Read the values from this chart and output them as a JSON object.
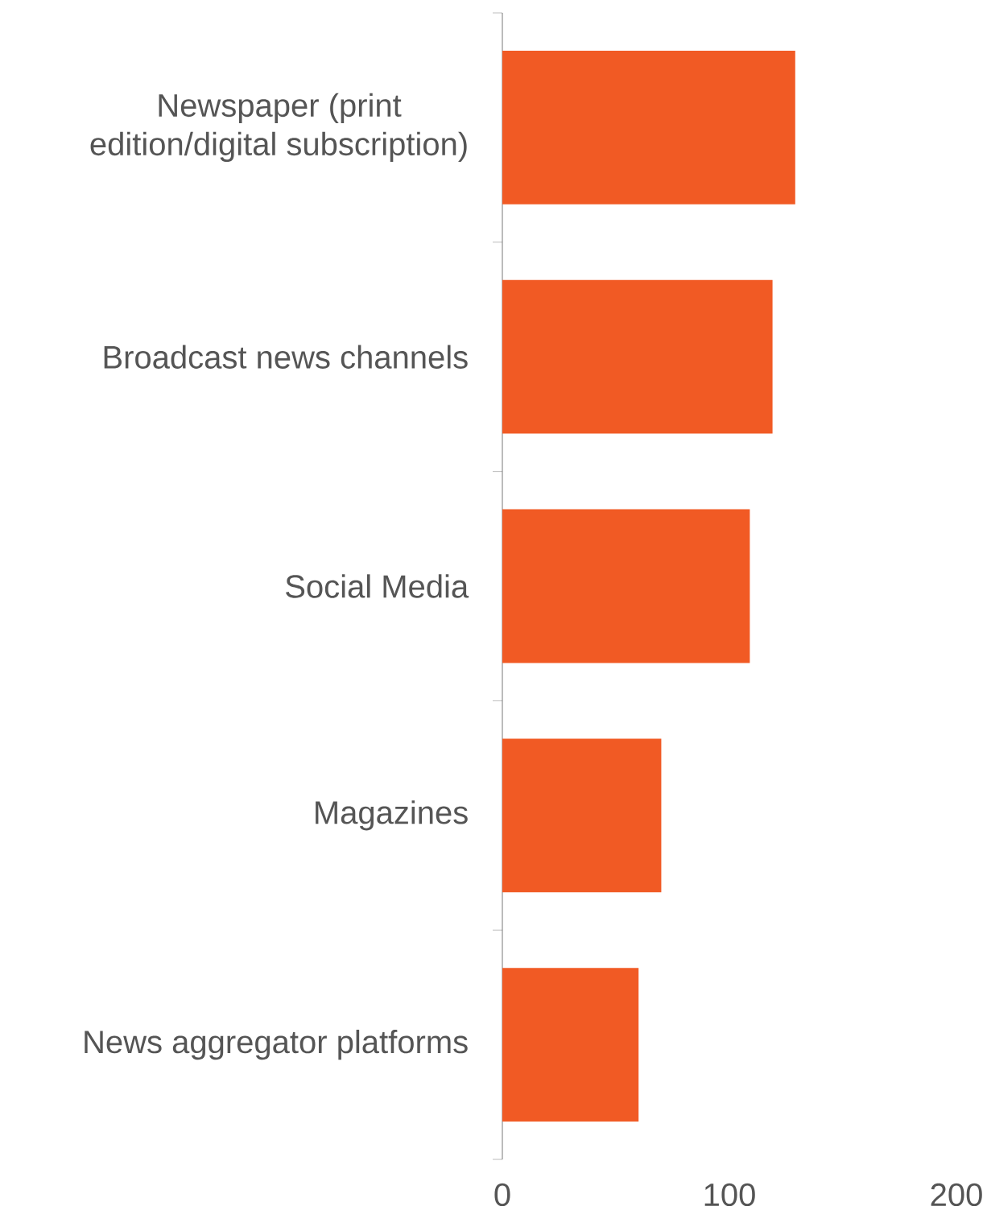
{
  "chart_data": {
    "type": "bar",
    "orientation": "horizontal",
    "categories": [
      "Newspaper (print edition/digital subscription)",
      "Broadcast news channels",
      "Social Media",
      "Magazines",
      "News aggregator platforms"
    ],
    "values": [
      129,
      119,
      109,
      70,
      60
    ],
    "color": "#f15a24",
    "xlim": [
      0,
      200
    ],
    "xticks": [
      0,
      100,
      200
    ]
  }
}
